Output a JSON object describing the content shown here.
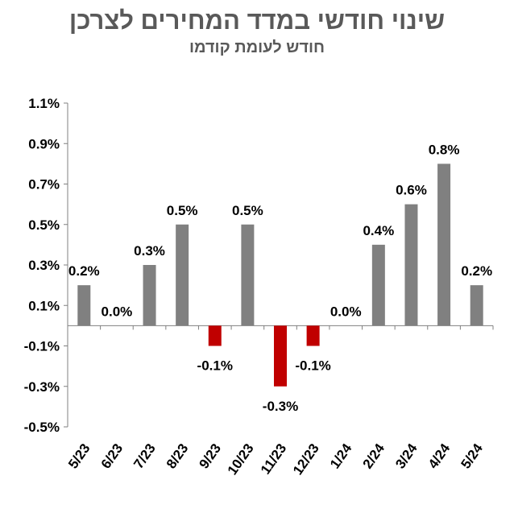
{
  "chart_data": {
    "type": "bar",
    "title": "שינוי חודשי במדד המחירים לצרכן",
    "subtitle": "חודש לעומת קודמו",
    "xlabel": "",
    "ylabel": "",
    "categories": [
      "5/23",
      "6/23",
      "7/23",
      "8/23",
      "9/23",
      "10/23",
      "11/23",
      "12/23",
      "1/24",
      "2/24",
      "3/24",
      "4/24",
      "5/24"
    ],
    "values": [
      0.2,
      0.0,
      0.3,
      0.5,
      -0.1,
      0.5,
      -0.3,
      -0.1,
      0.0,
      0.4,
      0.6,
      0.8,
      0.2
    ],
    "data_labels": [
      "0.2%",
      "0.0%",
      "0.3%",
      "0.5%",
      "-0.1%",
      "0.5%",
      "-0.3%",
      "-0.1%",
      "0.0%",
      "0.4%",
      "0.6%",
      "0.8%",
      "0.2%"
    ],
    "ylim": [
      -0.5,
      1.1
    ],
    "yticks": [
      1.1,
      0.9,
      0.7,
      0.5,
      0.3,
      0.1,
      -0.1,
      -0.3,
      -0.5
    ],
    "ytick_labels": [
      "1.1%",
      "0.9%",
      "0.7%",
      "0.5%",
      "0.3%",
      "0.1%",
      "-0.1%",
      "-0.3%",
      "-0.5%"
    ],
    "grid": false,
    "legend": "none",
    "colors": {
      "positive": "#808080",
      "negative": "#c00000"
    }
  }
}
